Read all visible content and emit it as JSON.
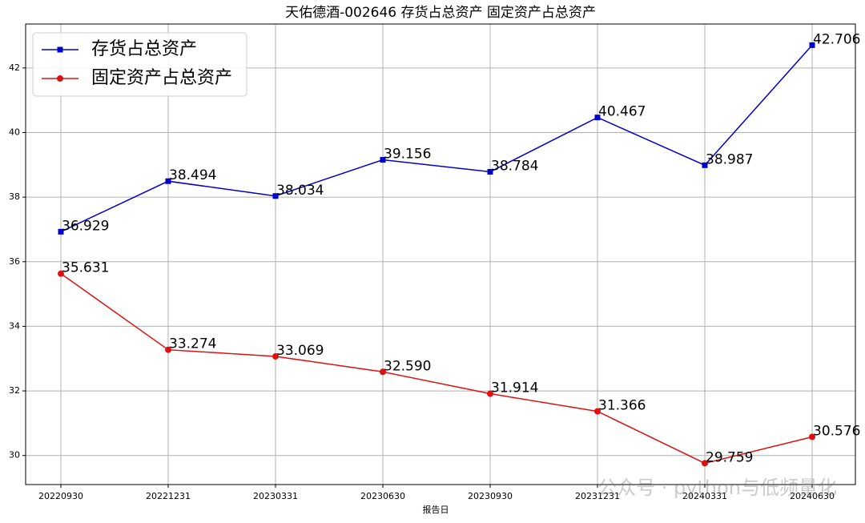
{
  "chart_data": {
    "type": "line",
    "title": "天佑德酒-002646 存货占总资产 固定资产占总资产",
    "x_label": "报告日",
    "categories": [
      "20220930",
      "20221231",
      "20230331",
      "20230630",
      "20230930",
      "20231231",
      "20240331",
      "20240630"
    ],
    "series": [
      {
        "name": "存货占总资产",
        "color": "#0000cc",
        "marker": "square",
        "values": [
          36.929,
          38.494,
          38.034,
          39.156,
          38.784,
          40.467,
          38.987,
          42.706
        ],
        "value_labels": [
          "36.929",
          "38.494",
          "38.034",
          "39.156",
          "38.784",
          "40.467",
          "38.987",
          "42.706"
        ]
      },
      {
        "name": "固定资产占总资产",
        "color": "#dd1111",
        "marker": "circle",
        "values": [
          35.631,
          33.274,
          33.069,
          32.59,
          31.914,
          31.366,
          29.759,
          30.576
        ],
        "value_labels": [
          "35.631",
          "33.274",
          "33.069",
          "32.590",
          "31.914",
          "31.366",
          "29.759",
          "30.576"
        ]
      }
    ],
    "ylim": [
      29.1,
      43.36
    ],
    "yticks": [
      30,
      32,
      34,
      36,
      38,
      40,
      42
    ],
    "grid": true,
    "legend": "upper left",
    "watermark": "公众号 · python与低频量化"
  }
}
